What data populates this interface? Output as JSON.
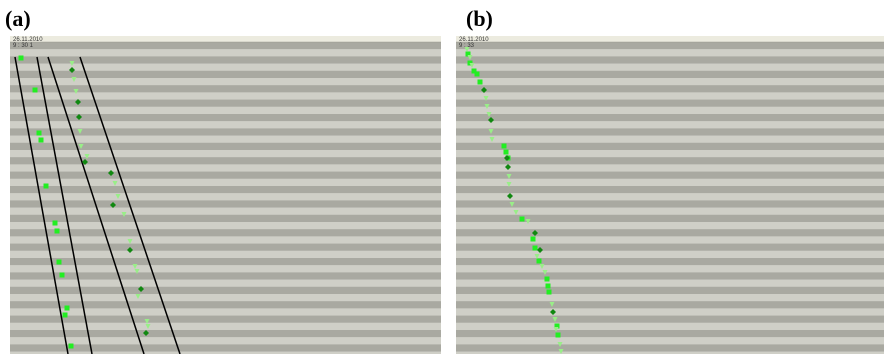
{
  "labels": {
    "a": "(a)",
    "b": "(b)"
  },
  "panels": {
    "a": {
      "date": "26.11.2010",
      "time": "9 : 30 1"
    },
    "b": {
      "date": "26.11.2010",
      "time": "9 : 33"
    }
  },
  "colors": {
    "row_dark": "#a9a9a1",
    "row_light": "#cfcfc7",
    "marker_bright": "#22ee22",
    "marker_dark": "#118811",
    "marker_pale": "#99ee88",
    "line": "#000000"
  }
}
